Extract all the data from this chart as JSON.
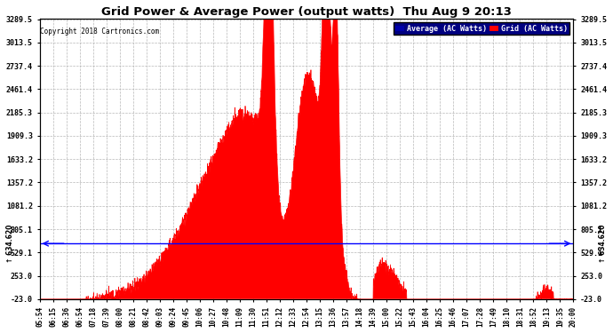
{
  "title": "Grid Power & Average Power (output watts)  Thu Aug 9 20:13",
  "copyright": "Copyright 2018 Cartronics.com",
  "legend_average": "Average (AC Watts)",
  "legend_grid": "Grid (AC Watts)",
  "average_value": 634.62,
  "yticks": [
    -23.0,
    253.0,
    529.1,
    805.1,
    1081.2,
    1357.2,
    1633.2,
    1909.3,
    2185.3,
    2461.4,
    2737.4,
    3013.5,
    3289.5
  ],
  "ylim_min": -23.0,
  "ylim_max": 3289.5,
  "background_color": "#ffffff",
  "grid_color": "#b0b0b0",
  "fill_color": "#ff0000",
  "line_color": "#ff0000",
  "average_line_color": "#0000ff",
  "title_color": "#000000",
  "xtick_labels": [
    "05:54",
    "06:15",
    "06:36",
    "06:54",
    "07:18",
    "07:39",
    "08:00",
    "08:21",
    "08:42",
    "09:03",
    "09:24",
    "09:45",
    "10:06",
    "10:27",
    "10:48",
    "11:09",
    "11:30",
    "11:51",
    "12:12",
    "12:33",
    "12:54",
    "13:15",
    "13:36",
    "13:57",
    "14:18",
    "14:39",
    "15:00",
    "15:22",
    "15:43",
    "16:04",
    "16:25",
    "16:46",
    "17:07",
    "17:28",
    "17:49",
    "18:10",
    "18:31",
    "18:52",
    "19:13",
    "19:35",
    "20:00"
  ]
}
